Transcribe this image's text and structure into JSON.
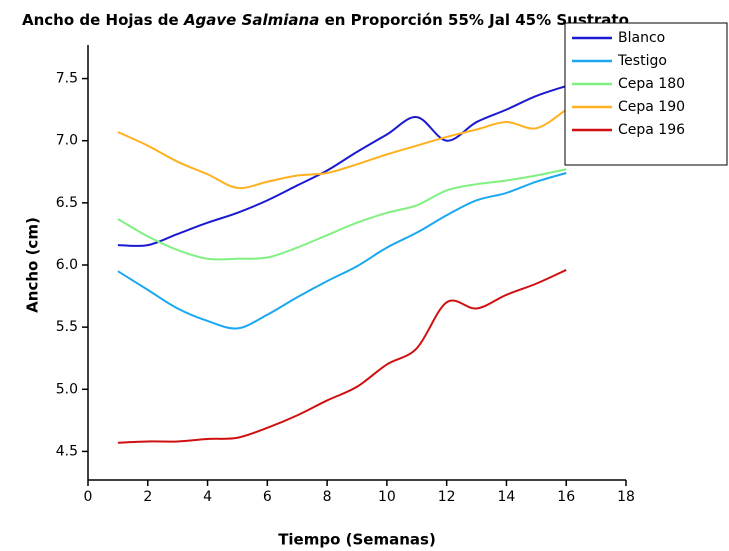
{
  "chart_data": {
    "type": "line",
    "title": [
      "Ancho de Hojas de ",
      "Agave Salmiana",
      " en Proporción 55% Jal 45% Sustrato"
    ],
    "xlabel": "Tiempo (Semanas)",
    "ylabel": "Ancho (cm)",
    "x": [
      1,
      2,
      3,
      4,
      5,
      6,
      7,
      8,
      9,
      10,
      11,
      12,
      13,
      14,
      15,
      16
    ],
    "series": [
      {
        "name": "Blanco",
        "color": "#1a1ad0",
        "values": [
          6.16,
          6.16,
          6.25,
          6.34,
          6.42,
          6.52,
          6.64,
          6.76,
          6.91,
          7.05,
          7.19,
          7.0,
          7.15,
          7.25,
          7.36,
          7.44
        ]
      },
      {
        "name": "Testigo",
        "color": "#1aa8f0",
        "values": [
          5.95,
          5.8,
          5.65,
          5.55,
          5.49,
          5.6,
          5.74,
          5.87,
          5.99,
          6.14,
          6.26,
          6.4,
          6.52,
          6.58,
          6.67,
          6.74
        ]
      },
      {
        "name": "Cepa 180",
        "color": "#80f080",
        "values": [
          6.37,
          6.23,
          6.12,
          6.05,
          6.05,
          6.06,
          6.14,
          6.24,
          6.34,
          6.42,
          6.48,
          6.6,
          6.65,
          6.68,
          6.72,
          6.77
        ]
      },
      {
        "name": "Cepa 190",
        "color": "#ffb020",
        "values": [
          7.07,
          6.96,
          6.83,
          6.73,
          6.62,
          6.67,
          6.72,
          6.74,
          6.81,
          6.89,
          6.96,
          7.03,
          7.09,
          7.15,
          7.1,
          7.25
        ]
      },
      {
        "name": "Cepa 196",
        "color": "#d01010",
        "values": [
          4.57,
          4.58,
          4.58,
          4.6,
          4.61,
          4.69,
          4.79,
          4.91,
          5.02,
          5.2,
          5.33,
          5.7,
          5.65,
          5.76,
          5.85,
          5.96
        ]
      }
    ],
    "xlim": [
      0,
      18
    ],
    "xticks": [
      0,
      2,
      4,
      6,
      8,
      10,
      12,
      14,
      16,
      18
    ],
    "ylim": [
      4.27,
      7.77
    ],
    "yticks": [
      {
        "value": 4.5,
        "label": "4.5"
      },
      {
        "value": 5,
        "label": "5.0"
      },
      {
        "value": 5.5,
        "label": "5.5"
      },
      {
        "value": 6,
        "label": "6.0"
      },
      {
        "value": 6.5,
        "label": "6.5"
      },
      {
        "value": 7,
        "label": "7.0"
      },
      {
        "value": 7.5,
        "label": "7.5"
      }
    ],
    "legend": "upper right"
  }
}
